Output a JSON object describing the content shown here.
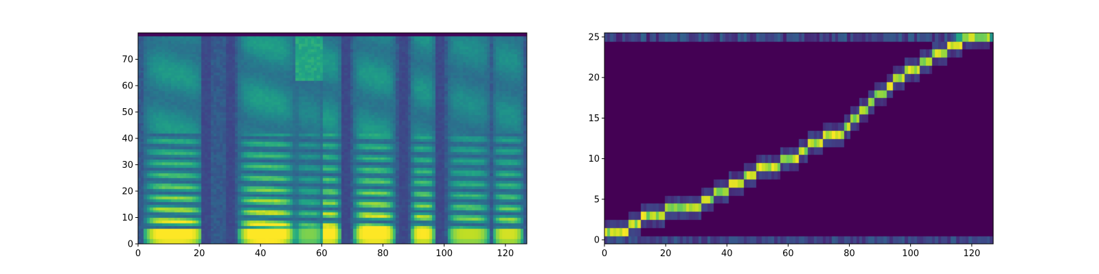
{
  "chart_data": [
    {
      "type": "heatmap",
      "name": "mel-spectrogram",
      "title": "",
      "xlabel": "",
      "ylabel": "",
      "xlim": [
        0,
        127
      ],
      "ylim": [
        0,
        80
      ],
      "xticks": [
        0,
        20,
        40,
        60,
        80,
        100,
        120
      ],
      "yticks": [
        0,
        10,
        20,
        30,
        40,
        50,
        60,
        70
      ],
      "x_tick_labels": [
        "0",
        "20",
        "40",
        "60",
        "80",
        "100",
        "120"
      ],
      "y_tick_labels": [
        "0",
        "10",
        "20",
        "30",
        "40",
        "50",
        "60",
        "70"
      ],
      "colormap": "viridis",
      "bins": [
        128,
        80
      ],
      "voiced_segments": [
        {
          "start": 2,
          "end": 21,
          "energy": 0.95
        },
        {
          "start": 33,
          "end": 51,
          "energy": 1.0
        },
        {
          "start": 52,
          "end": 60,
          "energy": 0.55
        },
        {
          "start": 58,
          "end": 66,
          "energy": 0.9
        },
        {
          "start": 71,
          "end": 84,
          "energy": 0.95
        },
        {
          "start": 90,
          "end": 97,
          "energy": 0.85
        },
        {
          "start": 102,
          "end": 115,
          "energy": 0.7
        },
        {
          "start": 117,
          "end": 126,
          "energy": 0.75
        }
      ],
      "silent_columns": [
        22,
        30,
        68,
        87,
        99
      ]
    },
    {
      "type": "heatmap",
      "name": "attention-alignment",
      "title": "",
      "xlabel": "",
      "ylabel": "",
      "xlim": [
        0,
        127
      ],
      "ylim": [
        -0.5,
        25.5
      ],
      "xticks": [
        0,
        20,
        40,
        60,
        80,
        100,
        120
      ],
      "yticks": [
        0,
        5,
        10,
        15,
        20,
        25
      ],
      "x_tick_labels": [
        "0",
        "20",
        "40",
        "60",
        "80",
        "100",
        "120"
      ],
      "y_tick_labels": [
        "0",
        "5",
        "10",
        "15",
        "20",
        "25"
      ],
      "colormap": "viridis",
      "bins": [
        128,
        26
      ],
      "alignment_path": [
        {
          "row": 1,
          "start": 0,
          "end": 8
        },
        {
          "row": 2,
          "start": 8,
          "end": 12
        },
        {
          "row": 3,
          "start": 12,
          "end": 20
        },
        {
          "row": 4,
          "start": 20,
          "end": 32
        },
        {
          "row": 5,
          "start": 32,
          "end": 36
        },
        {
          "row": 6,
          "start": 36,
          "end": 41
        },
        {
          "row": 7,
          "start": 41,
          "end": 46
        },
        {
          "row": 8,
          "start": 46,
          "end": 50
        },
        {
          "row": 9,
          "start": 50,
          "end": 58
        },
        {
          "row": 10,
          "start": 58,
          "end": 64
        },
        {
          "row": 11,
          "start": 64,
          "end": 67
        },
        {
          "row": 12,
          "start": 67,
          "end": 72
        },
        {
          "row": 13,
          "start": 72,
          "end": 79
        },
        {
          "row": 14,
          "start": 79,
          "end": 81
        },
        {
          "row": 15,
          "start": 81,
          "end": 84
        },
        {
          "row": 16,
          "start": 84,
          "end": 87
        },
        {
          "row": 17,
          "start": 87,
          "end": 89
        },
        {
          "row": 18,
          "start": 89,
          "end": 93
        },
        {
          "row": 19,
          "start": 93,
          "end": 95
        },
        {
          "row": 20,
          "start": 95,
          "end": 99
        },
        {
          "row": 21,
          "start": 99,
          "end": 104
        },
        {
          "row": 22,
          "start": 104,
          "end": 108
        },
        {
          "row": 23,
          "start": 108,
          "end": 113
        },
        {
          "row": 24,
          "start": 113,
          "end": 118
        },
        {
          "row": 25,
          "start": 118,
          "end": 127
        }
      ]
    }
  ]
}
